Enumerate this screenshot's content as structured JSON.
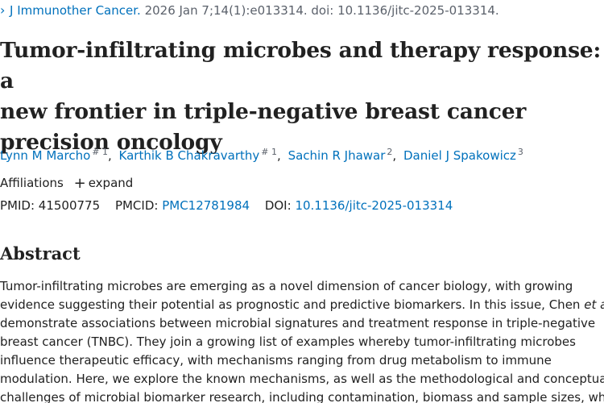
{
  "citation": {
    "chevron": "›",
    "journal": "J Immunother Cancer.",
    "details": " 2026 Jan 7;14(1):e013314. doi: 10.1136/jitc-2025-013314."
  },
  "title_lines": [
    "Tumor-infiltrating microbes and therapy response: a",
    "new frontier in triple-negative breast cancer",
    "precision oncology"
  ],
  "authors": [
    {
      "name": "Lynn M Marcho",
      "sup": "# 1"
    },
    {
      "name": "Karthik B Chakravarthy",
      "sup": "# 1"
    },
    {
      "name": "Sachin R Jhawar",
      "sup": "2"
    },
    {
      "name": "Daniel J Spakowicz",
      "sup": "3"
    }
  ],
  "affiliations": {
    "label": "Affiliations",
    "expand_icon": "+",
    "expand_label": "expand"
  },
  "ids": {
    "pmid_label": "PMID:",
    "pmid": "41500775",
    "pmcid_label": "PMCID:",
    "pmcid": "PMC12781984",
    "doi_label": "DOI:",
    "doi": "10.1136/jitc-2025-013314"
  },
  "abstract": {
    "heading": "Abstract",
    "line1": "Tumor-infiltrating microbes are emerging as a novel dimension of cancer biology, with growing",
    "line2": "evidence suggesting their potential as prognostic and predictive biomarkers. In this issue, Chen",
    "line2_em": "et al",
    "line3": "demonstrate associations between microbial signatures and treatment response in triple-negative",
    "line4": "breast cancer (TNBC). They join a growing list of examples whereby tumor-infiltrating microbes",
    "line5": "influence therapeutic efficacy, with mechanisms ranging from drug metabolism to immune",
    "line6": "modulation. Here, we explore the known mechanisms, as well as the methodological and conceptual",
    "line7": "challenges of microbial biomarker research, including contamination, biomass and sample sizes, which"
  }
}
